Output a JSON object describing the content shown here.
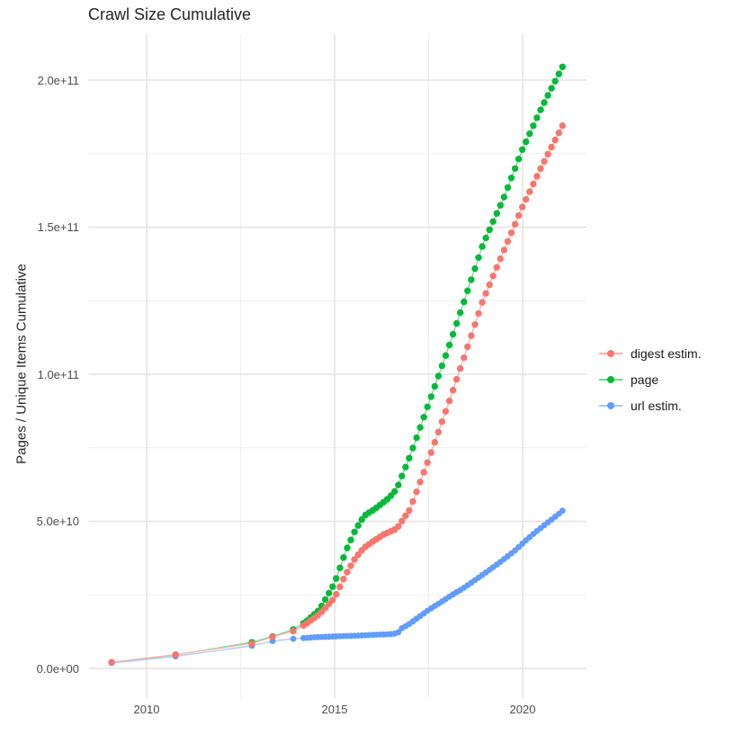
{
  "title": "Crawl Size Cumulative",
  "y_axis_title": "Pages / Unique Items Cumulative",
  "legend": {
    "items": [
      {
        "label": "digest estim.",
        "color": "#F8766D",
        "line_color": "#FBB2AD"
      },
      {
        "label": "page",
        "color": "#00BA38",
        "line_color": "#73D992"
      },
      {
        "label": "url estim.",
        "color": "#619CFF",
        "line_color": "#A8C9FF"
      }
    ]
  },
  "chart_data": {
    "type": "scatter",
    "title": "Crawl Size Cumulative",
    "xlabel": "",
    "ylabel": "Pages / Unique Items Cumulative",
    "units": "y values in billions (1e9 items); x values in decimal years",
    "grid": true,
    "legend_position": "right",
    "x_range": [
      2008.47,
      2021.68
    ],
    "y_range_e9": [
      -10,
      215
    ],
    "x_ticks": {
      "major": [
        2010,
        2015,
        2020
      ],
      "minor": [
        2012.5,
        2017.5
      ],
      "labels": [
        "2010",
        "2015",
        "2020"
      ]
    },
    "y_ticks": {
      "major_e9": [
        0,
        50,
        100,
        150,
        200
      ],
      "minor_e9": [
        25,
        75,
        125,
        175
      ],
      "labels": [
        "0.0e+00",
        "5.0e+10",
        "1.0e+11",
        "1.5e+11",
        "2.0e+11"
      ]
    },
    "crawl_years_sparse": [
      2009.07,
      2010.77,
      2012.8,
      2013.35,
      2013.9
    ],
    "dense_range": {
      "start": 2014.17,
      "end": 2021.06,
      "points": 72
    },
    "draw_order": [
      "page",
      "url estim.",
      "digest estim."
    ],
    "series": [
      {
        "name": "digest estim.",
        "color": "#F8766D",
        "line_color": "#FBB2AD",
        "anchors_e9": [
          [
            2009.07,
            2.1
          ],
          [
            2010.77,
            4.7
          ],
          [
            2012.8,
            8.5
          ],
          [
            2013.35,
            10.7
          ],
          [
            2013.9,
            12.7
          ],
          [
            2014.25,
            15.2
          ],
          [
            2014.6,
            18.5
          ],
          [
            2015.0,
            24.0
          ],
          [
            2015.3,
            32.0
          ],
          [
            2015.55,
            37.5
          ],
          [
            2015.78,
            41.0
          ],
          [
            2016.0,
            43.0
          ],
          [
            2016.3,
            45.5
          ],
          [
            2016.65,
            47.5
          ],
          [
            2017.0,
            54.0
          ],
          [
            2017.5,
            71.0
          ],
          [
            2018.0,
            89.0
          ],
          [
            2018.45,
            106.0
          ],
          [
            2018.94,
            125.0
          ],
          [
            2019.5,
            142.0
          ],
          [
            2019.98,
            156.5
          ],
          [
            2020.5,
            170.5
          ],
          [
            2021.06,
            184.5
          ]
        ]
      },
      {
        "name": "page",
        "color": "#00BA38",
        "line_color": "#73D992",
        "anchors_e9": [
          [
            2009.07,
            2.0
          ],
          [
            2010.77,
            4.6
          ],
          [
            2012.8,
            8.9
          ],
          [
            2013.35,
            10.9
          ],
          [
            2013.9,
            13.2
          ],
          [
            2014.25,
            16.0
          ],
          [
            2014.6,
            20.0
          ],
          [
            2015.0,
            29.0
          ],
          [
            2015.3,
            40.0
          ],
          [
            2015.55,
            47.0
          ],
          [
            2015.78,
            51.8
          ],
          [
            2016.1,
            54.5
          ],
          [
            2016.45,
            58.0
          ],
          [
            2016.65,
            61.0
          ],
          [
            2017.0,
            72.0
          ],
          [
            2017.5,
            90.0
          ],
          [
            2018.0,
            108.0
          ],
          [
            2018.45,
            125.0
          ],
          [
            2018.94,
            144.0
          ],
          [
            2019.5,
            160.0
          ],
          [
            2019.98,
            176.0
          ],
          [
            2020.5,
            190.5
          ],
          [
            2021.06,
            204.5
          ]
        ]
      },
      {
        "name": "url estim.",
        "color": "#619CFF",
        "line_color": "#A8C9FF",
        "anchors_e9": [
          [
            2009.07,
            1.85
          ],
          [
            2010.77,
            4.1
          ],
          [
            2012.8,
            7.7
          ],
          [
            2013.35,
            9.3
          ],
          [
            2013.9,
            10.1
          ],
          [
            2014.5,
            10.6
          ],
          [
            2015.0,
            10.9
          ],
          [
            2015.5,
            11.1
          ],
          [
            2016.0,
            11.4
          ],
          [
            2016.55,
            11.7
          ],
          [
            2016.68,
            12.1
          ],
          [
            2016.8,
            13.8
          ],
          [
            2016.95,
            14.8
          ],
          [
            2017.2,
            17.1
          ],
          [
            2017.5,
            19.9
          ],
          [
            2017.8,
            22.3
          ],
          [
            2018.1,
            24.8
          ],
          [
            2018.45,
            27.5
          ],
          [
            2019.0,
            32.4
          ],
          [
            2019.4,
            36.1
          ],
          [
            2019.8,
            40.1
          ],
          [
            2020.05,
            43.1
          ],
          [
            2020.3,
            45.9
          ],
          [
            2020.6,
            48.9
          ],
          [
            2020.85,
            51.4
          ],
          [
            2021.06,
            53.6
          ]
        ]
      }
    ]
  }
}
